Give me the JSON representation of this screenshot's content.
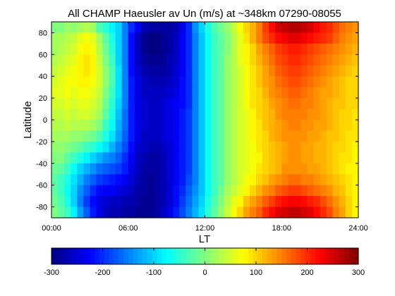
{
  "chart_data": {
    "type": "heatmap",
    "title": "All CHAMP Haeusler av Un (m/s) at ~348km 07290-08055",
    "xlabel": "LT",
    "ylabel": "Latitude",
    "xlim": [
      0,
      24
    ],
    "ylim": [
      -90,
      90
    ],
    "x_ticks": [
      "00:00",
      "06:00",
      "12:00",
      "18:00",
      "24:00"
    ],
    "y_ticks": [
      "80",
      "60",
      "40",
      "20",
      "0",
      "-20",
      "-40",
      "-60",
      "-80"
    ],
    "colorbar": {
      "colormap": "jet",
      "range": [
        -300,
        300
      ],
      "ticks": [
        "-300",
        "-200",
        "-100",
        "0",
        "100",
        "200",
        "300"
      ]
    },
    "lt_bins": [
      0.25,
      0.75,
      1.25,
      1.75,
      2.25,
      2.75,
      3.25,
      3.75,
      4.25,
      4.75,
      5.25,
      5.75,
      6.25,
      6.75,
      7.25,
      7.75,
      8.25,
      8.75,
      9.25,
      9.75,
      10.25,
      10.75,
      11.25,
      11.75,
      12.25,
      12.75,
      13.25,
      13.75,
      14.25,
      14.75,
      15.25,
      15.75,
      16.25,
      16.75,
      17.25,
      17.75,
      18.25,
      18.75,
      19.25,
      19.75,
      20.25,
      20.75,
      21.25,
      21.75,
      22.25,
      22.75,
      23.25,
      23.75
    ],
    "lat_bins": [
      85,
      75,
      65,
      55,
      45,
      35,
      25,
      15,
      5,
      -5,
      -15,
      -25,
      -35,
      -45,
      -55,
      -65,
      -75,
      -85
    ],
    "values": [
      [
        0,
        0,
        15,
        10,
        20,
        30,
        20,
        -30,
        -50,
        -80,
        -100,
        -150,
        -200,
        -230,
        -270,
        -280,
        -280,
        -280,
        -280,
        -270,
        -240,
        -200,
        -140,
        -100,
        -60,
        -30,
        -10,
        10,
        40,
        70,
        100,
        120,
        150,
        190,
        220,
        250,
        260,
        270,
        270,
        260,
        250,
        230,
        210,
        200,
        180,
        160,
        150,
        140
      ],
      [
        20,
        25,
        30,
        40,
        60,
        70,
        60,
        20,
        -20,
        -60,
        -100,
        -150,
        -220,
        -260,
        -290,
        -300,
        -300,
        -290,
        -280,
        -260,
        -230,
        -200,
        -150,
        -110,
        -70,
        -40,
        -20,
        0,
        30,
        60,
        90,
        120,
        150,
        180,
        200,
        220,
        230,
        240,
        240,
        230,
        220,
        210,
        200,
        190,
        170,
        150,
        140,
        130
      ],
      [
        20,
        30,
        40,
        50,
        70,
        80,
        70,
        30,
        -10,
        -50,
        -100,
        -150,
        -220,
        -260,
        -290,
        -300,
        -300,
        -290,
        -280,
        -260,
        -230,
        -200,
        -150,
        -110,
        -70,
        -40,
        -20,
        0,
        30,
        60,
        80,
        100,
        130,
        150,
        170,
        190,
        200,
        210,
        210,
        200,
        190,
        180,
        170,
        160,
        150,
        140,
        130,
        120
      ],
      [
        30,
        40,
        50,
        60,
        80,
        90,
        80,
        40,
        0,
        -40,
        -100,
        -150,
        -220,
        -260,
        -280,
        -290,
        -290,
        -290,
        -270,
        -260,
        -230,
        -200,
        -150,
        -110,
        -70,
        -40,
        -20,
        10,
        30,
        60,
        80,
        100,
        120,
        140,
        160,
        180,
        190,
        200,
        200,
        190,
        180,
        170,
        160,
        150,
        140,
        130,
        120,
        110
      ],
      [
        40,
        50,
        60,
        70,
        80,
        90,
        80,
        50,
        10,
        -30,
        -90,
        -150,
        -220,
        -250,
        -270,
        -280,
        -280,
        -280,
        -270,
        -250,
        -230,
        -200,
        -150,
        -110,
        -70,
        -40,
        -20,
        10,
        30,
        50,
        70,
        90,
        110,
        130,
        150,
        170,
        180,
        190,
        190,
        180,
        170,
        160,
        150,
        140,
        130,
        120,
        110,
        100
      ],
      [
        50,
        60,
        70,
        70,
        80,
        80,
        70,
        50,
        10,
        -30,
        -90,
        -150,
        -210,
        -240,
        -260,
        -270,
        -270,
        -270,
        -260,
        -250,
        -220,
        -200,
        -150,
        -110,
        -70,
        -40,
        -20,
        10,
        30,
        50,
        70,
        90,
        110,
        130,
        140,
        160,
        170,
        180,
        180,
        170,
        160,
        150,
        140,
        130,
        120,
        110,
        100,
        100
      ],
      [
        60,
        60,
        70,
        60,
        70,
        70,
        60,
        40,
        0,
        -40,
        -90,
        -150,
        -210,
        -240,
        -260,
        -260,
        -260,
        -260,
        -250,
        -240,
        -220,
        -200,
        -150,
        -110,
        -70,
        -40,
        -20,
        10,
        30,
        50,
        70,
        90,
        100,
        120,
        140,
        150,
        160,
        170,
        170,
        160,
        150,
        140,
        130,
        130,
        120,
        110,
        100,
        100
      ],
      [
        50,
        50,
        60,
        50,
        60,
        60,
        50,
        30,
        -10,
        -50,
        -100,
        -150,
        -210,
        -240,
        -250,
        -260,
        -260,
        -250,
        -240,
        -230,
        -220,
        -200,
        -150,
        -110,
        -70,
        -40,
        -20,
        10,
        30,
        50,
        70,
        90,
        100,
        110,
        130,
        140,
        150,
        160,
        160,
        150,
        150,
        140,
        130,
        120,
        110,
        110,
        100,
        100
      ],
      [
        40,
        40,
        50,
        40,
        50,
        50,
        40,
        20,
        -20,
        -60,
        -110,
        -160,
        -210,
        -240,
        -250,
        -260,
        -260,
        -250,
        -240,
        -230,
        -210,
        -190,
        -150,
        -110,
        -70,
        -40,
        -20,
        10,
        30,
        50,
        60,
        80,
        100,
        110,
        120,
        140,
        150,
        150,
        150,
        150,
        140,
        140,
        130,
        120,
        110,
        100,
        100,
        90
      ],
      [
        30,
        30,
        40,
        30,
        30,
        30,
        20,
        0,
        -40,
        -70,
        -120,
        -160,
        -210,
        -240,
        -250,
        -260,
        -260,
        -250,
        -240,
        -230,
        -210,
        -190,
        -150,
        -110,
        -70,
        -40,
        -20,
        10,
        30,
        50,
        60,
        80,
        90,
        110,
        120,
        130,
        140,
        150,
        150,
        140,
        140,
        130,
        130,
        120,
        110,
        100,
        100,
        90
      ],
      [
        20,
        20,
        20,
        10,
        10,
        0,
        -10,
        -30,
        -60,
        -90,
        -130,
        -170,
        -210,
        -240,
        -260,
        -260,
        -260,
        -250,
        -240,
        -230,
        -210,
        -190,
        -150,
        -110,
        -70,
        -40,
        -20,
        10,
        30,
        50,
        60,
        80,
        90,
        100,
        120,
        130,
        140,
        140,
        140,
        140,
        130,
        130,
        120,
        110,
        110,
        100,
        90,
        90
      ],
      [
        10,
        10,
        0,
        -10,
        -20,
        -40,
        -50,
        -70,
        -90,
        -120,
        -150,
        -180,
        -220,
        -250,
        -260,
        -270,
        -270,
        -260,
        -250,
        -230,
        -210,
        -190,
        -150,
        -110,
        -70,
        -40,
        -20,
        10,
        30,
        50,
        60,
        70,
        90,
        100,
        110,
        120,
        130,
        140,
        140,
        130,
        130,
        120,
        120,
        110,
        100,
        100,
        90,
        80
      ],
      [
        0,
        0,
        -20,
        -40,
        -60,
        -80,
        -100,
        -120,
        -140,
        -150,
        -170,
        -200,
        -230,
        -260,
        -270,
        -280,
        -280,
        -270,
        -250,
        -230,
        -210,
        -190,
        -150,
        -110,
        -70,
        -40,
        -20,
        10,
        30,
        50,
        60,
        70,
        80,
        100,
        110,
        120,
        130,
        140,
        140,
        130,
        130,
        120,
        120,
        110,
        100,
        90,
        90,
        80
      ],
      [
        -10,
        -20,
        -40,
        -70,
        -100,
        -120,
        -140,
        -160,
        -170,
        -180,
        -190,
        -210,
        -240,
        -260,
        -280,
        -280,
        -280,
        -270,
        -250,
        -230,
        -210,
        -190,
        -150,
        -110,
        -70,
        -40,
        -20,
        10,
        30,
        50,
        60,
        70,
        90,
        100,
        110,
        120,
        140,
        140,
        140,
        140,
        130,
        130,
        120,
        110,
        100,
        90,
        80,
        80
      ],
      [
        -20,
        -40,
        -60,
        -90,
        -120,
        -150,
        -170,
        -190,
        -200,
        -210,
        -220,
        -230,
        -250,
        -270,
        -280,
        -290,
        -280,
        -270,
        -250,
        -230,
        -210,
        -180,
        -150,
        -110,
        -70,
        -40,
        -20,
        10,
        30,
        50,
        70,
        80,
        100,
        110,
        130,
        140,
        150,
        160,
        160,
        150,
        150,
        140,
        130,
        120,
        110,
        100,
        90,
        80
      ],
      [
        -20,
        -40,
        -70,
        -100,
        -140,
        -170,
        -200,
        -220,
        -230,
        -230,
        -240,
        -250,
        -260,
        -280,
        -280,
        -290,
        -280,
        -270,
        -250,
        -220,
        -200,
        -170,
        -140,
        -110,
        -70,
        -40,
        -10,
        20,
        40,
        60,
        80,
        100,
        120,
        140,
        150,
        170,
        180,
        190,
        190,
        180,
        170,
        160,
        150,
        140,
        120,
        110,
        90,
        80
      ],
      [
        -10,
        -30,
        -60,
        -100,
        -150,
        -190,
        -220,
        -240,
        -250,
        -260,
        -260,
        -270,
        -270,
        -280,
        -290,
        -290,
        -280,
        -270,
        -250,
        -220,
        -190,
        -160,
        -130,
        -100,
        -60,
        -30,
        0,
        30,
        60,
        80,
        110,
        130,
        150,
        170,
        190,
        210,
        220,
        230,
        230,
        220,
        210,
        200,
        180,
        160,
        140,
        120,
        100,
        80
      ],
      [
        0,
        -20,
        -40,
        -80,
        -130,
        -170,
        -210,
        -240,
        -260,
        -270,
        -270,
        -280,
        -280,
        -290,
        -290,
        -290,
        -280,
        -260,
        -240,
        -210,
        -180,
        -150,
        -120,
        -90,
        -50,
        -20,
        10,
        40,
        70,
        100,
        130,
        150,
        170,
        200,
        220,
        240,
        250,
        260,
        260,
        250,
        240,
        220,
        200,
        180,
        150,
        130,
        100,
        80
      ]
    ]
  }
}
